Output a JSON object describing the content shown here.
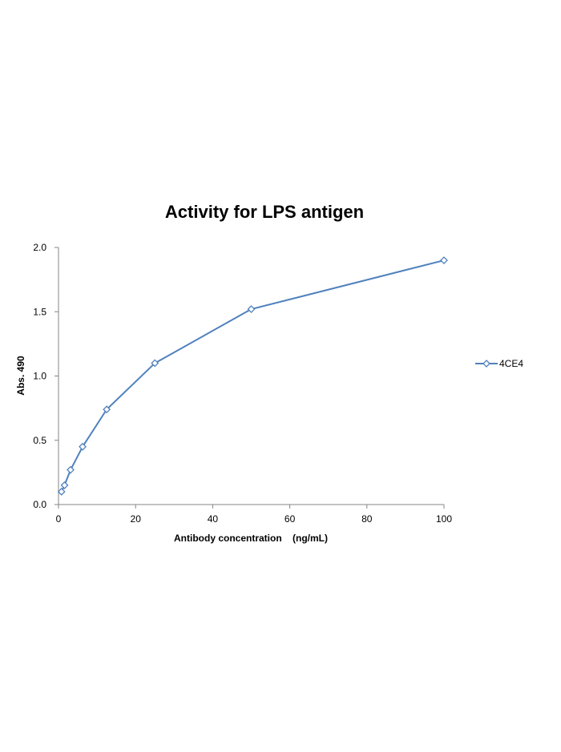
{
  "chart_data": {
    "type": "line",
    "title": "Activity for LPS antigen",
    "xlabel": "Antibody concentration    (ng/mL)",
    "ylabel": "Abs. 490",
    "xlim": [
      0,
      100
    ],
    "ylim": [
      0,
      2.0
    ],
    "x_ticks": [
      0,
      20,
      40,
      60,
      80,
      100
    ],
    "y_ticks": [
      0.0,
      0.5,
      1.0,
      1.5,
      2.0
    ],
    "x_tick_labels": [
      "0",
      "20",
      "40",
      "60",
      "80",
      "100"
    ],
    "y_tick_labels": [
      "0.0",
      "0.5",
      "1.0",
      "1.5",
      "2.0"
    ],
    "grid": false,
    "legend_position": "right",
    "series": [
      {
        "name": "4CE4",
        "color": "#4f81bd",
        "marker": "diamond-open",
        "x": [
          0.78,
          1.56,
          3.125,
          6.25,
          12.5,
          25,
          50,
          100
        ],
        "y": [
          0.1,
          0.15,
          0.27,
          0.45,
          0.74,
          1.1,
          1.52,
          1.9
        ]
      }
    ]
  }
}
